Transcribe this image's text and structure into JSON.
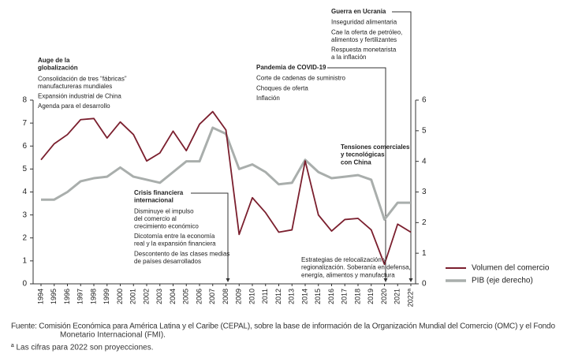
{
  "chart_data": {
    "type": "line",
    "categories": [
      "1994",
      "1995",
      "1996",
      "1997",
      "1998",
      "1999",
      "2000",
      "2001",
      "2002",
      "2003",
      "2004",
      "2005",
      "2006",
      "2007",
      "2008",
      "2009",
      "2010",
      "2011",
      "2012",
      "2013",
      "2014",
      "2015",
      "2016",
      "2017",
      "2018",
      "2019",
      "2020",
      "2021",
      "2022ª"
    ],
    "series": [
      {
        "name": "Volumen del comercio",
        "color": "#7b1f2e",
        "values": [
          5.4,
          6.1,
          6.5,
          7.15,
          7.2,
          6.35,
          7.05,
          6.5,
          5.35,
          5.7,
          6.65,
          5.8,
          6.95,
          7.5,
          6.7,
          2.15,
          3.75,
          3.1,
          2.25,
          2.35,
          5.35,
          3.0,
          2.3,
          2.8,
          2.85,
          2.35,
          0.85,
          2.6,
          2.25
        ]
      },
      {
        "name": "PIB (eje derecho)",
        "color": "#a9aeac",
        "axis": "y2",
        "values": [
          2.75,
          2.75,
          3.0,
          3.35,
          3.45,
          3.5,
          3.8,
          3.5,
          3.4,
          3.3,
          3.65,
          4.0,
          4.0,
          5.1,
          4.9,
          3.75,
          3.9,
          3.65,
          3.25,
          3.3,
          4.05,
          3.65,
          3.45,
          3.5,
          3.55,
          3.4,
          2.1,
          2.65,
          2.65
        ]
      }
    ],
    "ylim": [
      0,
      8
    ],
    "yticks": [
      0,
      1,
      2,
      3,
      4,
      5,
      6,
      7,
      8
    ],
    "y2lim": [
      0,
      6
    ],
    "y2ticks": [
      0,
      1,
      2,
      3,
      4,
      5,
      6
    ],
    "annotations": [
      {
        "title": [
          "Auge de la",
          "globalización"
        ],
        "items": [
          [
            "Consolidación de tres “fábricas”",
            "manufactureras mundiales"
          ],
          [
            "Expansión industrial de China"
          ],
          [
            "Agenda para el desarrollo"
          ]
        ]
      },
      {
        "title": [
          "Crisis financiera",
          "internacional"
        ],
        "items": [
          [
            "Disminuye el impulso",
            "del comercio al",
            "crecimiento económico"
          ],
          [
            "Dicotomía entre la economía",
            "real y la expansión financiera"
          ],
          [
            "Descontento de las clases medias",
            "de países desarrollados"
          ]
        ]
      },
      {
        "title": [
          "Pandemia de COVID-19"
        ],
        "items": [
          [
            "Corte de cadenas de suministro"
          ],
          [
            "Choques de oferta"
          ],
          [
            "Inflación"
          ]
        ]
      },
      {
        "title": [
          "Guerra en Ucrania"
        ],
        "items": [
          [
            "Inseguridad alimentaria"
          ],
          [
            "Cae la oferta de petróleo,",
            "alimentos y fertilizantes"
          ],
          [
            "Respuesta monetarista",
            "a la inflación"
          ]
        ]
      },
      {
        "title": [
          "Tensiones comerciales",
          "y tecnológicas",
          "con China"
        ]
      },
      {
        "items": [
          [
            "Estrategias de relocalización y",
            "regionalización. Soberanía en defensa,",
            "energía, alimentos y manufactura"
          ]
        ]
      }
    ],
    "source": [
      "Fuente: Comisión Económica para América Latina y el Caribe (CEPAL), sobre la base de información de la Organización Mundial del Comercio (OMC) y el Fondo",
      "Monetario Internacional (FMI)."
    ],
    "note": "ª Las cifras para 2022 son proyecciones."
  }
}
